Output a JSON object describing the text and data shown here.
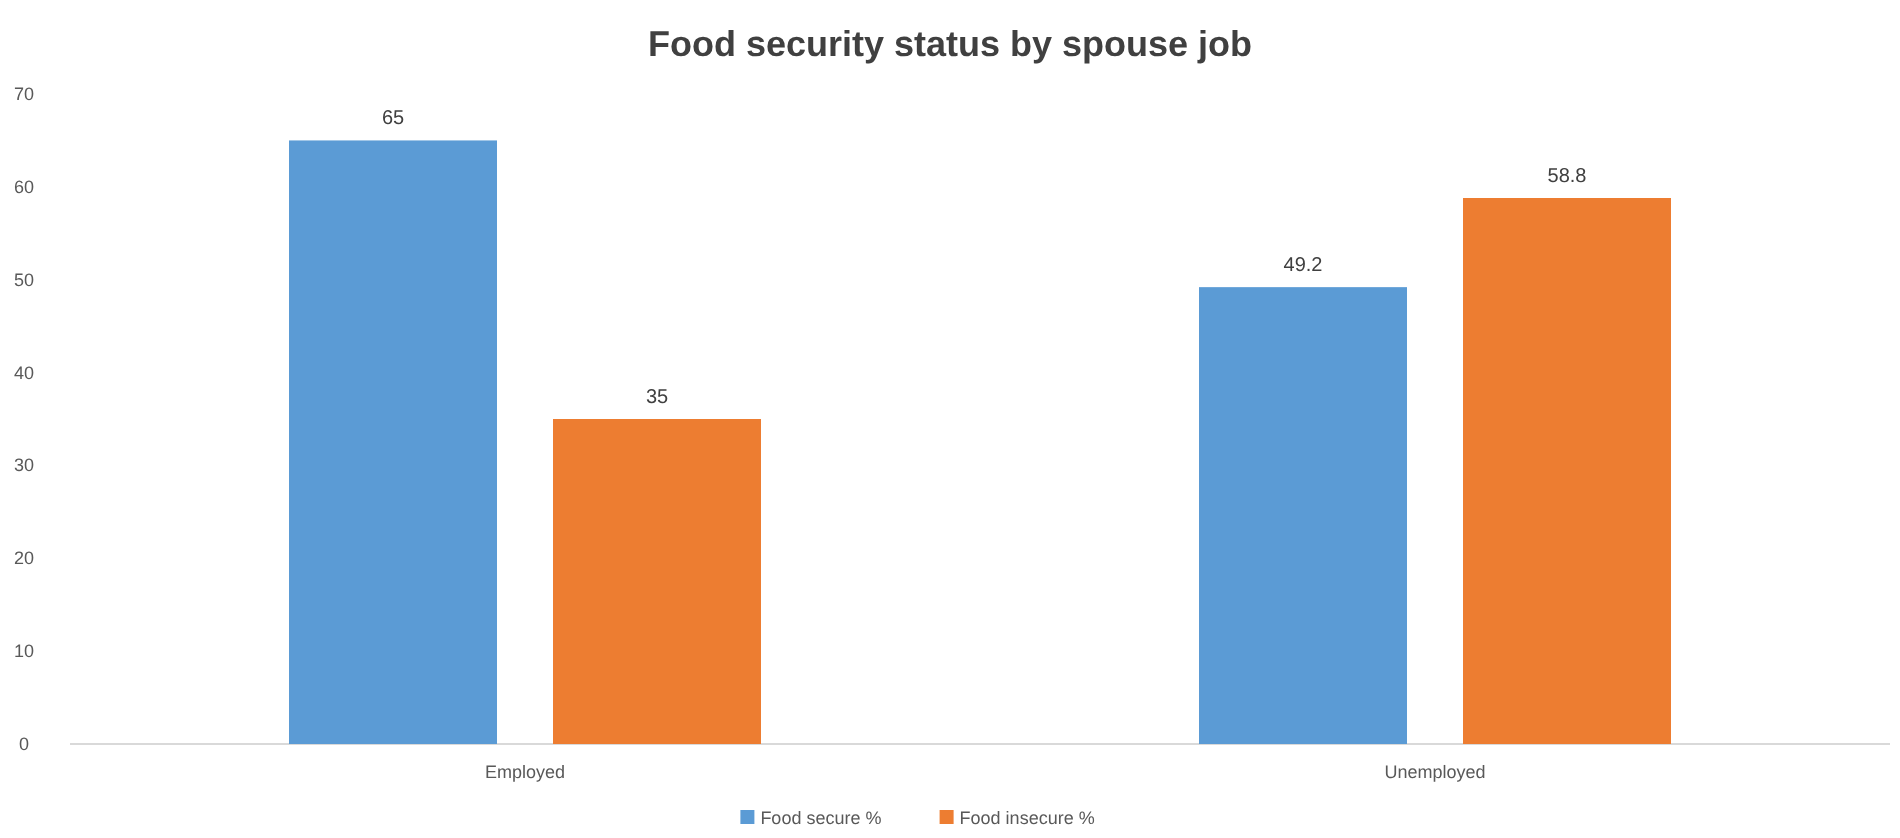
{
  "chart_data": {
    "type": "bar",
    "title": "Food security status by spouse job",
    "categories": [
      "Employed",
      "Unemployed"
    ],
    "series": [
      {
        "name": "Food secure %",
        "color": "#5b9bd5",
        "values": [
          65,
          49.2
        ]
      },
      {
        "name": "Food insecure %",
        "color": "#ed7d31",
        "values": [
          35,
          58.8
        ]
      }
    ],
    "ylim": [
      0,
      70
    ],
    "yticks": [
      0,
      10,
      20,
      30,
      40,
      50,
      60,
      70
    ],
    "grid": false,
    "legend": "bottom",
    "data_labels": true
  }
}
